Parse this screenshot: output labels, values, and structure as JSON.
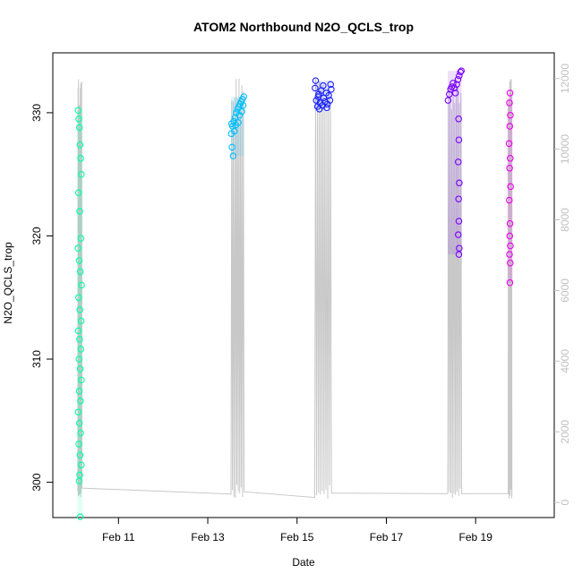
{
  "chart_data": {
    "type": "scatter",
    "title": "ATOM2 Northbound N2O_QCLS_trop",
    "xlabel": "Date",
    "ylabel": "N2O_QCLS_trop",
    "x_type": "date",
    "xlim": [
      "2016-02-09 18:00",
      "2016-02-20 12:00"
    ],
    "ylim": [
      297.5,
      334.5
    ],
    "y2lim": [
      -300,
      12600
    ],
    "x_ticks": [
      {
        "value": "2016-02-11",
        "label": "Feb 11"
      },
      {
        "value": "2016-02-13",
        "label": "Feb 13"
      },
      {
        "value": "2016-02-15",
        "label": "Feb 15"
      },
      {
        "value": "2016-02-17",
        "label": "Feb 17"
      },
      {
        "value": "2016-02-19",
        "label": "Feb 19"
      }
    ],
    "y_ticks": [
      300,
      310,
      320,
      330
    ],
    "y2_ticks": [
      0,
      2000,
      4000,
      6000,
      8000,
      10000,
      12000
    ],
    "grid": false,
    "legend": "none",
    "altitude_line_color": "#c8c8c8",
    "series": [
      {
        "color": "#00ffaa",
        "x_start": "2016-02-10 02:10",
        "x_end": "2016-02-10 04:20",
        "points": [
          [
            "2016-02-10 02:20",
            330.2
          ],
          [
            "2016-02-10 02:40",
            329.5
          ],
          [
            "2016-02-10 03:00",
            328.8
          ],
          [
            "2016-02-10 03:20",
            327.4
          ],
          [
            "2016-02-10 03:40",
            326.3
          ],
          [
            "2016-02-10 04:00",
            325.0
          ],
          [
            "2016-02-10 02:30",
            323.5
          ],
          [
            "2016-02-10 03:10",
            322.0
          ],
          [
            "2016-02-10 03:50",
            319.8
          ],
          [
            "2016-02-10 02:15",
            319.0
          ],
          [
            "2016-02-10 02:50",
            318.0
          ],
          [
            "2016-02-10 03:30",
            317.1
          ],
          [
            "2016-02-10 04:10",
            316.0
          ],
          [
            "2016-02-10 02:35",
            315.0
          ],
          [
            "2016-02-10 03:15",
            314.0
          ],
          [
            "2016-02-10 03:55",
            313.1
          ],
          [
            "2016-02-10 02:25",
            312.3
          ],
          [
            "2016-02-10 03:05",
            311.6
          ],
          [
            "2016-02-10 03:45",
            310.8
          ],
          [
            "2016-02-10 02:45",
            310.0
          ],
          [
            "2016-02-10 03:25",
            309.2
          ],
          [
            "2016-02-10 04:05",
            308.3
          ],
          [
            "2016-02-10 02:55",
            307.4
          ],
          [
            "2016-02-10 03:35",
            306.6
          ],
          [
            "2016-02-10 02:20",
            305.7
          ],
          [
            "2016-02-10 03:00",
            304.8
          ],
          [
            "2016-02-10 03:40",
            304.0
          ],
          [
            "2016-02-10 02:40",
            303.1
          ],
          [
            "2016-02-10 03:20",
            302.2
          ],
          [
            "2016-02-10 04:00",
            301.4
          ],
          [
            "2016-02-10 03:10",
            300.6
          ],
          [
            "2016-02-10 02:50",
            300.1
          ],
          [
            "2016-02-10 03:30",
            297.2
          ]
        ]
      },
      {
        "color": "#00c0ff",
        "x_start": "2016-02-13 12:30",
        "x_end": "2016-02-13 19:30",
        "points": [
          [
            "2016-02-13 12:40",
            328.3
          ],
          [
            "2016-02-13 13:20",
            328.9
          ],
          [
            "2016-02-13 14:00",
            329.3
          ],
          [
            "2016-02-13 14:40",
            329.6
          ],
          [
            "2016-02-13 15:20",
            330.0
          ],
          [
            "2016-02-13 16:00",
            330.3
          ],
          [
            "2016-02-13 16:40",
            330.5
          ],
          [
            "2016-02-13 17:20",
            330.7
          ],
          [
            "2016-02-13 18:00",
            330.9
          ],
          [
            "2016-02-13 18:40",
            331.1
          ],
          [
            "2016-02-13 19:20",
            331.3
          ],
          [
            "2016-02-13 13:00",
            327.2
          ],
          [
            "2016-02-13 13:40",
            326.5
          ],
          [
            "2016-02-13 15:00",
            329.0
          ],
          [
            "2016-02-13 17:00",
            329.8
          ],
          [
            "2016-02-13 12:50",
            329.1
          ],
          [
            "2016-02-13 14:20",
            328.5
          ],
          [
            "2016-02-13 16:20",
            329.2
          ],
          [
            "2016-02-13 18:20",
            330.1
          ],
          [
            "2016-02-13 19:00",
            330.6
          ]
        ]
      },
      {
        "color": "#1a22ff",
        "x_start": "2016-02-15 09:30",
        "x_end": "2016-02-15 18:30",
        "points": [
          [
            "2016-02-15 09:40",
            332.0
          ],
          [
            "2016-02-15 10:20",
            331.0
          ],
          [
            "2016-02-15 11:00",
            330.5
          ],
          [
            "2016-02-15 11:40",
            331.5
          ],
          [
            "2016-02-15 12:20",
            330.8
          ],
          [
            "2016-02-15 13:00",
            331.8
          ],
          [
            "2016-02-15 13:40",
            330.6
          ],
          [
            "2016-02-15 14:20",
            331.2
          ],
          [
            "2016-02-15 15:00",
            330.9
          ],
          [
            "2016-02-15 15:40",
            331.6
          ],
          [
            "2016-02-15 16:20",
            330.7
          ],
          [
            "2016-02-15 17:00",
            331.4
          ],
          [
            "2016-02-15 17:40",
            331.0
          ],
          [
            "2016-02-15 18:20",
            331.9
          ],
          [
            "2016-02-15 10:00",
            332.6
          ],
          [
            "2016-02-15 12:00",
            330.3
          ],
          [
            "2016-02-15 14:00",
            332.2
          ],
          [
            "2016-02-15 16:00",
            330.4
          ],
          [
            "2016-02-15 18:00",
            332.3
          ],
          [
            "2016-02-15 11:20",
            331.3
          ]
        ]
      },
      {
        "color": "#7a00ff",
        "x_start": "2016-02-18 09:00",
        "x_end": "2016-02-18 16:30",
        "points": [
          [
            "2016-02-18 09:10",
            331.0
          ],
          [
            "2016-02-18 09:50",
            331.5
          ],
          [
            "2016-02-18 10:30",
            331.9
          ],
          [
            "2016-02-18 11:10",
            332.1
          ],
          [
            "2016-02-18 11:50",
            332.4
          ],
          [
            "2016-02-18 12:30",
            332.0
          ],
          [
            "2016-02-18 13:10",
            331.6
          ],
          [
            "2016-02-18 13:50",
            332.3
          ],
          [
            "2016-02-18 14:30",
            332.7
          ],
          [
            "2016-02-18 15:10",
            333.0
          ],
          [
            "2016-02-18 15:50",
            333.3
          ],
          [
            "2016-02-18 16:20",
            333.4
          ],
          [
            "2016-02-18 14:50",
            329.5
          ],
          [
            "2016-02-18 15:00",
            327.8
          ],
          [
            "2016-02-18 14:40",
            326.0
          ],
          [
            "2016-02-18 15:10",
            324.3
          ],
          [
            "2016-02-18 14:50",
            323.0
          ],
          [
            "2016-02-18 15:00",
            321.2
          ],
          [
            "2016-02-18 14:40",
            320.1
          ],
          [
            "2016-02-18 15:10",
            319.0
          ],
          [
            "2016-02-18 15:00",
            318.5
          ]
        ]
      },
      {
        "color": "#ee00ee",
        "x_start": "2016-02-19 17:30",
        "x_end": "2016-02-19 19:30",
        "points": [
          [
            "2016-02-19 18:30",
            331.6
          ],
          [
            "2016-02-19 18:10",
            330.8
          ],
          [
            "2016-02-19 18:40",
            329.8
          ],
          [
            "2016-02-19 18:20",
            328.9
          ],
          [
            "2016-02-19 18:00",
            327.5
          ],
          [
            "2016-02-19 18:35",
            326.3
          ],
          [
            "2016-02-19 18:15",
            325.5
          ],
          [
            "2016-02-19 18:45",
            324.0
          ],
          [
            "2016-02-19 18:05",
            322.9
          ],
          [
            "2016-02-19 18:30",
            321.0
          ],
          [
            "2016-02-19 18:20",
            320.0
          ],
          [
            "2016-02-19 18:40",
            319.2
          ],
          [
            "2016-02-19 18:10",
            318.5
          ],
          [
            "2016-02-19 18:35",
            317.8
          ],
          [
            "2016-02-19 18:25",
            316.2
          ]
        ]
      }
    ]
  }
}
